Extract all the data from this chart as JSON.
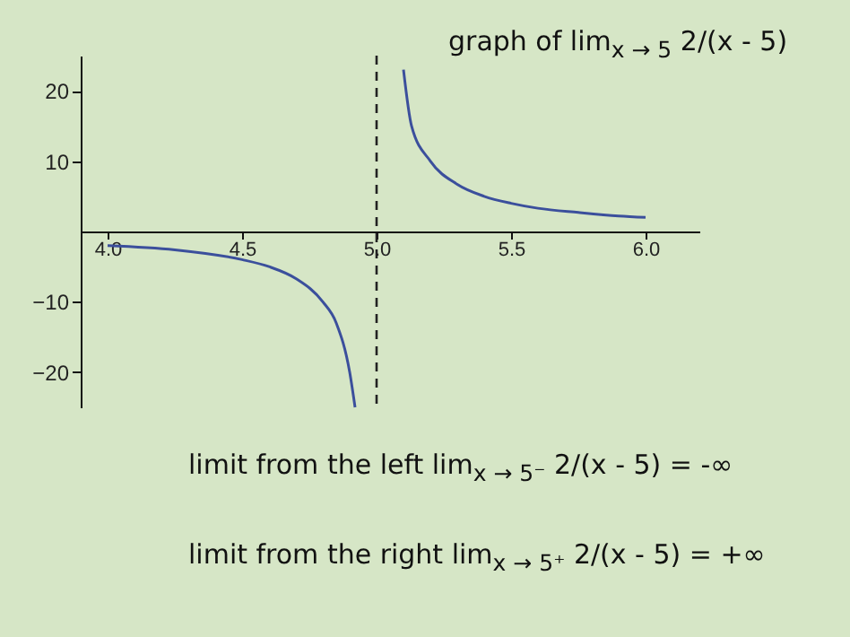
{
  "chart_data": {
    "type": "line",
    "series": [
      {
        "color": "#3b4f9c",
        "x": [
          4.0,
          4.25,
          4.5,
          4.6,
          4.7,
          4.8,
          4.85,
          4.9,
          4.92
        ],
        "values": [
          -2,
          -2.6,
          -4,
          -5,
          -6.7,
          -10,
          -13,
          -20,
          -25
        ]
      },
      {
        "color": "#3b4f9c",
        "x": [
          5.1,
          5.13,
          5.2,
          5.3,
          5.4,
          5.5,
          5.6,
          5.75,
          5.9,
          6.0
        ],
        "values": [
          23,
          15,
          10,
          6.7,
          5,
          4,
          3.3,
          2.7,
          2.2,
          2
        ]
      }
    ],
    "xlim": [
      3.9,
      6.2
    ],
    "xticks": [
      {
        "value": 4,
        "label": "4.0"
      },
      4.5,
      {
        "value": 5,
        "label": "5.0"
      },
      5.5,
      {
        "value": 6,
        "label": "6.0"
      }
    ],
    "ylim": [
      -25,
      25
    ],
    "yticks": [
      -20,
      -10,
      10,
      20
    ],
    "ref_lines": [
      {
        "axis": "x",
        "value": 5,
        "line_style": "dashed",
        "color": "#222222"
      }
    ],
    "grid": false,
    "legend": false,
    "marker": "none",
    "line_style": "solid",
    "annotations": [
      "graph of lim$_{x → 5}$ 2/(x - 5)",
      "limit from the left lim$_{x → 5⁻}$ 2/(x - 5) = -∞",
      "limit from the right lim$_{x → 5⁺}$ 2/(x - 5) = +∞"
    ]
  }
}
